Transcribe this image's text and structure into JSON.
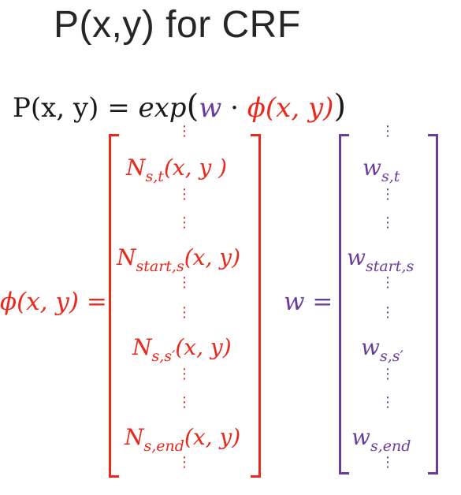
{
  "title": "P(x,y) for CRF",
  "equation": {
    "lhs": "P(x, y) = ",
    "exp": "exp",
    "open": "(",
    "w": "w",
    "dot": " · ",
    "phi": "ϕ(x, y)",
    "close": ")"
  },
  "phi_vector": {
    "label": "ϕ(x, y) =",
    "entries": [
      {
        "base": "N",
        "sub": "s,t",
        "args": "(x, y )"
      },
      {
        "base": "N",
        "sub": "start,s",
        "args": "(x, y)"
      },
      {
        "base": "N",
        "sub": "s,s′",
        "args": "(x, y)"
      },
      {
        "base": "N",
        "sub": "s,end",
        "args": "(x, y)"
      }
    ],
    "dots": "⋮"
  },
  "w_vector": {
    "label": "w =",
    "entries": [
      {
        "base": "w",
        "sub": "s,t"
      },
      {
        "base": "w",
        "sub": "start,s"
      },
      {
        "base": "w",
        "sub": "s,s′"
      },
      {
        "base": "w",
        "sub": "s,end"
      }
    ],
    "dots": "⋮"
  },
  "colors": {
    "phi": "#e8291c",
    "w": "#6a3d9a",
    "text": "#1a1a1a"
  }
}
